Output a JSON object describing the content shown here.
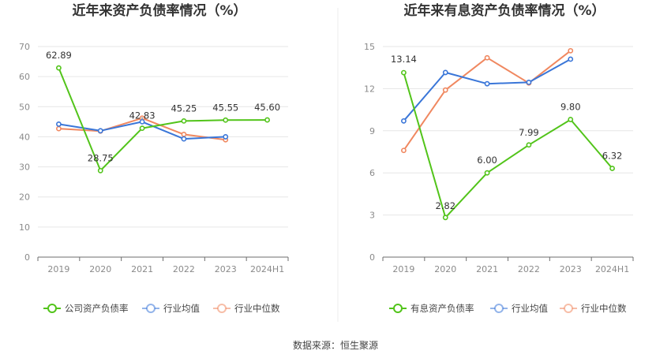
{
  "source_text": "数据来源：恒生聚源",
  "chart_data": [
    {
      "type": "line",
      "title": "近年来资产负债率情况（%）",
      "categories": [
        "2019",
        "2020",
        "2021",
        "2022",
        "2023",
        "2024H1"
      ],
      "ylim": [
        0,
        70
      ],
      "yticks": [
        "0",
        "10",
        "20",
        "30",
        "40",
        "50",
        "60",
        "70"
      ],
      "grid": true,
      "legend_position": "bottom",
      "series": [
        {
          "name": "公司资产负债率",
          "color": "#52c41a",
          "values": [
            62.89,
            28.75,
            42.83,
            45.25,
            45.55,
            45.6
          ],
          "labels": [
            "62.89",
            "28.75",
            "42.83",
            "45.25",
            "45.55",
            "45.60"
          ]
        },
        {
          "name": "行业均值",
          "color": "#3a76d8",
          "values": [
            44.2,
            42.0,
            45.0,
            39.3,
            40.0,
            null
          ]
        },
        {
          "name": "行业中位数",
          "color": "#f08860",
          "values": [
            42.7,
            41.9,
            46.2,
            40.8,
            39.0,
            null
          ]
        }
      ]
    },
    {
      "type": "line",
      "title": "近年来有息资产负债率情况（%）",
      "categories": [
        "2019",
        "2020",
        "2021",
        "2022",
        "2023",
        "2024H1"
      ],
      "ylim": [
        0,
        15
      ],
      "yticks": [
        "0",
        "3",
        "6",
        "9",
        "12",
        "15"
      ],
      "grid": true,
      "legend_position": "bottom",
      "series": [
        {
          "name": "有息资产负债率",
          "color": "#52c41a",
          "values": [
            13.14,
            2.82,
            6.0,
            7.99,
            9.8,
            6.32
          ],
          "labels": [
            "13.14",
            "2.82",
            "6.00",
            "7.99",
            "9.80",
            "6.32"
          ]
        },
        {
          "name": "行业均值",
          "color": "#3a76d8",
          "values": [
            9.7,
            13.15,
            12.35,
            12.45,
            14.1,
            null
          ]
        },
        {
          "name": "行业中位数",
          "color": "#f08860",
          "values": [
            7.6,
            11.9,
            14.2,
            12.4,
            14.7,
            null
          ]
        }
      ]
    }
  ]
}
